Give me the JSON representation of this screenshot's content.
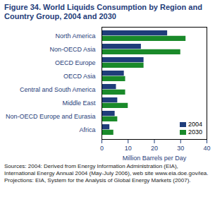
{
  "chart_data": {
    "type": "bar",
    "orientation": "horizontal",
    "title": "Figure 34.  World Liquids Consumption by Region and Country Group, 2004 and 2030",
    "categories": [
      "North America",
      "Non-OECD Asia",
      "OECD Europe",
      "OECD Asia",
      "Central and South America",
      "Middle East",
      "Non-OECD Europe and Eurasia",
      "Africa"
    ],
    "series": [
      {
        "name": "2004",
        "color": "#1f3d7a",
        "values": [
          25,
          15,
          16,
          8.5,
          5.5,
          6,
          5,
          3
        ]
      },
      {
        "name": "2030",
        "color": "#1a8a2a",
        "values": [
          32,
          30,
          16,
          9,
          9,
          10,
          6,
          4.5
        ]
      }
    ],
    "x_label": "Million Barrels per Day",
    "xlim": [
      0,
      40
    ],
    "xticks": [
      0,
      10,
      20,
      30,
      40
    ],
    "grid": false,
    "legend": "lower right",
    "caption": "Sources: 2004: Derived from Energy Information Administration (EIA), International Energy Annual 2004 (May-July 2006), web site www.eia.doe.gov/iea. Projections: EIA, System for the Analysis of Global Energy Markets (2007)."
  }
}
